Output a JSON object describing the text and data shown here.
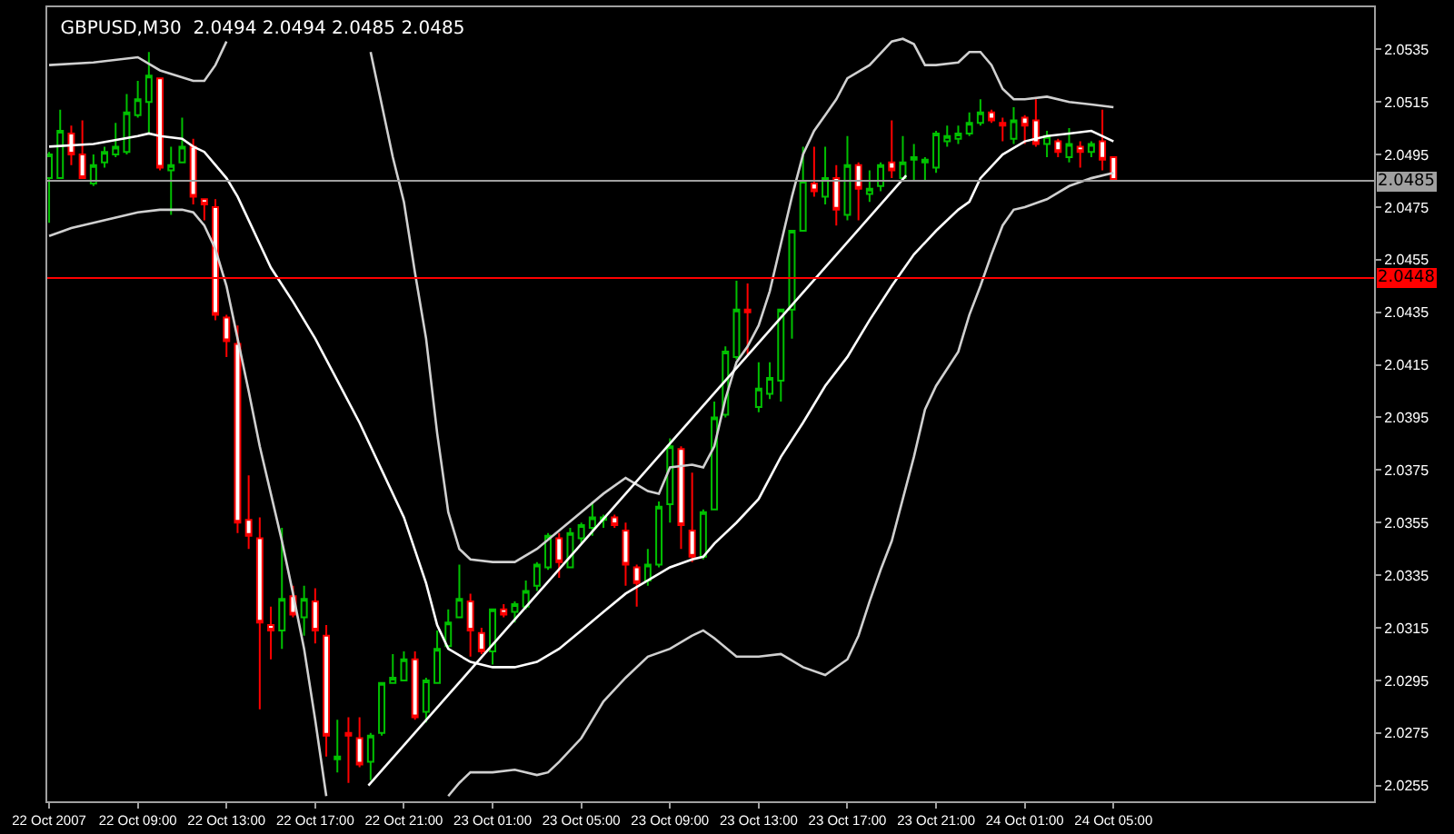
{
  "chart_data": {
    "type": "candlestick",
    "title": "GBPUSD,M30  2.0494 2.0494 2.0485 2.0485",
    "x": [
      "2007-10-22T05:00",
      "2007-10-22T05:30",
      "2007-10-22T06:00",
      "2007-10-22T06:30",
      "2007-10-22T07:00",
      "2007-10-22T07:30",
      "2007-10-22T08:00",
      "2007-10-22T08:30",
      "2007-10-22T09:00",
      "2007-10-22T09:30",
      "2007-10-22T10:00",
      "2007-10-22T10:30",
      "2007-10-22T11:00",
      "2007-10-22T11:30",
      "2007-10-22T12:00",
      "2007-10-22T12:30",
      "2007-10-22T13:00",
      "2007-10-22T13:30",
      "2007-10-22T14:00",
      "2007-10-22T14:30",
      "2007-10-22T15:00",
      "2007-10-22T15:30",
      "2007-10-22T16:00",
      "2007-10-22T16:30",
      "2007-10-22T17:00",
      "2007-10-22T17:30",
      "2007-10-22T18:00",
      "2007-10-22T18:30",
      "2007-10-22T19:00",
      "2007-10-22T19:30",
      "2007-10-22T20:00",
      "2007-10-22T20:30",
      "2007-10-22T21:00",
      "2007-10-22T21:30",
      "2007-10-22T22:00",
      "2007-10-22T22:30",
      "2007-10-22T23:00",
      "2007-10-22T23:30",
      "2007-10-23T00:00",
      "2007-10-23T00:30",
      "2007-10-23T01:00",
      "2007-10-23T01:30",
      "2007-10-23T02:00",
      "2007-10-23T02:30",
      "2007-10-23T03:00",
      "2007-10-23T03:30",
      "2007-10-23T04:00",
      "2007-10-23T04:30",
      "2007-10-23T05:00",
      "2007-10-23T05:30",
      "2007-10-23T06:00",
      "2007-10-23T06:30",
      "2007-10-23T07:00",
      "2007-10-23T07:30",
      "2007-10-23T08:00",
      "2007-10-23T08:30",
      "2007-10-23T09:00",
      "2007-10-23T09:30",
      "2007-10-23T10:00",
      "2007-10-23T10:30",
      "2007-10-23T11:00",
      "2007-10-23T11:30",
      "2007-10-23T12:00",
      "2007-10-23T12:30",
      "2007-10-23T13:00",
      "2007-10-23T13:30",
      "2007-10-23T14:00",
      "2007-10-23T14:30",
      "2007-10-23T15:00",
      "2007-10-23T15:30",
      "2007-10-23T16:00",
      "2007-10-23T16:30",
      "2007-10-23T17:00",
      "2007-10-23T17:30",
      "2007-10-23T18:00",
      "2007-10-23T18:30",
      "2007-10-23T19:00",
      "2007-10-23T19:30",
      "2007-10-23T20:00",
      "2007-10-23T20:30",
      "2007-10-23T21:00",
      "2007-10-23T21:30",
      "2007-10-23T22:00",
      "2007-10-23T22:30",
      "2007-10-23T23:00",
      "2007-10-23T23:30",
      "2007-10-24T00:00",
      "2007-10-24T00:30",
      "2007-10-24T01:00",
      "2007-10-24T01:30",
      "2007-10-24T02:00",
      "2007-10-24T02:30",
      "2007-10-24T03:00",
      "2007-10-24T03:30",
      "2007-10-24T04:00",
      "2007-10-24T04:30",
      "2007-10-24T05:00"
    ],
    "ohlc": [
      [
        2.0486,
        2.0496,
        2.0469,
        2.0495
      ],
      [
        2.0486,
        2.0512,
        2.0486,
        2.0504
      ],
      [
        2.0503,
        2.0506,
        2.0491,
        2.0495
      ],
      [
        2.0495,
        2.0508,
        2.0486,
        2.0486
      ],
      [
        2.0484,
        2.0495,
        2.0483,
        2.0491
      ],
      [
        2.0492,
        2.0498,
        2.049,
        2.0496
      ],
      [
        2.0495,
        2.0507,
        2.0494,
        2.0498
      ],
      [
        2.0496,
        2.0518,
        2.0495,
        2.0511
      ],
      [
        2.051,
        2.0523,
        2.0509,
        2.0516
      ],
      [
        2.0515,
        2.0534,
        2.0503,
        2.0525
      ],
      [
        2.0524,
        2.0524,
        2.0489,
        2.049
      ],
      [
        2.0489,
        2.0498,
        2.0472,
        2.0491
      ],
      [
        2.0492,
        2.0509,
        2.0492,
        2.0498
      ],
      [
        2.0498,
        2.0501,
        2.0476,
        2.0479
      ],
      [
        2.0478,
        2.0478,
        2.047,
        2.0476
      ],
      [
        2.0475,
        2.0478,
        2.0432,
        2.0434
      ],
      [
        2.0433,
        2.0434,
        2.0418,
        2.0424
      ],
      [
        2.0423,
        2.043,
        2.0351,
        2.0355
      ],
      [
        2.0356,
        2.0373,
        2.0345,
        2.035
      ],
      [
        2.0349,
        2.0357,
        2.0284,
        2.0317
      ],
      [
        2.0316,
        2.0323,
        2.0303,
        2.0314
      ],
      [
        2.0314,
        2.0353,
        2.0307,
        2.0326
      ],
      [
        2.0327,
        2.0331,
        2.0319,
        2.032
      ],
      [
        2.0319,
        2.0331,
        2.0312,
        2.0326
      ],
      [
        2.0325,
        2.033,
        2.0309,
        2.0314
      ],
      [
        2.0312,
        2.0316,
        2.0266,
        2.0274
      ],
      [
        2.0265,
        2.028,
        2.026,
        2.0266
      ],
      [
        2.0275,
        2.0281,
        2.0256,
        2.0274
      ],
      [
        2.0273,
        2.0281,
        2.0262,
        2.0263
      ],
      [
        2.0264,
        2.0275,
        2.0257,
        2.0274
      ],
      [
        2.0275,
        2.0294,
        2.0274,
        2.0294
      ],
      [
        2.0294,
        2.0305,
        2.0294,
        2.0296
      ],
      [
        2.0295,
        2.0306,
        2.0295,
        2.0303
      ],
      [
        2.0303,
        2.0306,
        2.028,
        2.0281
      ],
      [
        2.0283,
        2.0296,
        2.0279,
        2.0295
      ],
      [
        2.0294,
        2.0314,
        2.0294,
        2.0307
      ],
      [
        2.0308,
        2.0322,
        2.0307,
        2.0317
      ],
      [
        2.0319,
        2.0339,
        2.0319,
        2.0326
      ],
      [
        2.0325,
        2.0328,
        2.0304,
        2.0314
      ],
      [
        2.0313,
        2.0315,
        2.0305,
        2.0306
      ],
      [
        2.0306,
        2.0322,
        2.0301,
        2.0322
      ],
      [
        2.0322,
        2.0324,
        2.0319,
        2.032
      ],
      [
        2.0321,
        2.0325,
        2.0317,
        2.0324
      ],
      [
        2.0323,
        2.0333,
        2.0322,
        2.0329
      ],
      [
        2.0331,
        2.034,
        2.0329,
        2.0339
      ],
      [
        2.0338,
        2.0351,
        2.0337,
        2.035
      ],
      [
        2.0349,
        2.0351,
        2.0334,
        2.034
      ],
      [
        2.0338,
        2.0353,
        2.0338,
        2.0351
      ],
      [
        2.0349,
        2.0355,
        2.0347,
        2.0354
      ],
      [
        2.0353,
        2.0363,
        2.035,
        2.0357
      ],
      [
        2.0356,
        2.0358,
        2.0353,
        2.0357
      ],
      [
        2.0357,
        2.0358,
        2.0353,
        2.0354
      ],
      [
        2.0352,
        2.0355,
        2.0331,
        2.0339
      ],
      [
        2.0338,
        2.0339,
        2.0323,
        2.0332
      ],
      [
        2.0333,
        2.0345,
        2.0331,
        2.0339
      ],
      [
        2.0339,
        2.0363,
        2.0338,
        2.0361
      ],
      [
        2.0362,
        2.0387,
        2.0355,
        2.0384
      ],
      [
        2.0383,
        2.0384,
        2.0345,
        2.0354
      ],
      [
        2.0352,
        2.0374,
        2.034,
        2.0342
      ],
      [
        2.0342,
        2.036,
        2.0341,
        2.0359
      ],
      [
        2.036,
        2.0401,
        2.036,
        2.0395
      ],
      [
        2.0396,
        2.0422,
        2.0395,
        2.042
      ],
      [
        2.0418,
        2.0447,
        2.0417,
        2.0436
      ],
      [
        2.0436,
        2.0446,
        2.0419,
        2.0435
      ],
      [
        2.0399,
        2.0416,
        2.0397,
        2.0406
      ],
      [
        2.0404,
        2.0416,
        2.0402,
        2.041
      ],
      [
        2.0409,
        2.0436,
        2.0401,
        2.0436
      ],
      [
        2.0436,
        2.0466,
        2.0425,
        2.0466
      ],
      [
        2.0466,
        2.0498,
        2.0466,
        2.0485
      ],
      [
        2.0484,
        2.0498,
        2.0479,
        2.0481
      ],
      [
        2.0479,
        2.0498,
        2.0476,
        2.0486
      ],
      [
        2.0486,
        2.0491,
        2.0468,
        2.0474
      ],
      [
        2.0472,
        2.0502,
        2.047,
        2.0491
      ],
      [
        2.0491,
        2.0492,
        2.047,
        2.0482
      ],
      [
        2.048,
        2.0489,
        2.0477,
        2.0482
      ],
      [
        2.0483,
        2.0492,
        2.0481,
        2.0491
      ],
      [
        2.0492,
        2.0508,
        2.0486,
        2.0489
      ],
      [
        2.0486,
        2.0502,
        2.0486,
        2.0492
      ],
      [
        2.0493,
        2.0499,
        2.0485,
        2.0494
      ],
      [
        2.0492,
        2.0494,
        2.0485,
        2.0493
      ],
      [
        2.049,
        2.0504,
        2.0488,
        2.0503
      ],
      [
        2.05,
        2.0506,
        2.0498,
        2.0502
      ],
      [
        2.0501,
        2.0506,
        2.0499,
        2.0503
      ],
      [
        2.0503,
        2.0511,
        2.0502,
        2.0507
      ],
      [
        2.0507,
        2.0516,
        2.0506,
        2.0511
      ],
      [
        2.0511,
        2.0512,
        2.0507,
        2.0508
      ],
      [
        2.0507,
        2.0509,
        2.05,
        2.0506
      ],
      [
        2.0501,
        2.0513,
        2.0499,
        2.0508
      ],
      [
        2.0509,
        2.051,
        2.0499,
        2.0506
      ],
      [
        2.0508,
        2.0516,
        2.0498,
        2.0499
      ],
      [
        2.0499,
        2.0504,
        2.0494,
        2.0502
      ],
      [
        2.05,
        2.0501,
        2.0494,
        2.0496
      ],
      [
        2.0494,
        2.0505,
        2.0492,
        2.0499
      ],
      [
        2.0498,
        2.05,
        2.049,
        2.0496
      ],
      [
        2.0496,
        2.05,
        2.0494,
        2.0499
      ],
      [
        2.05,
        2.0512,
        2.0489,
        2.0493
      ],
      [
        2.0494,
        2.0494,
        2.0485,
        2.0485
      ]
    ],
    "colors": [
      "#00c000",
      "#00c000",
      "#ff0000",
      "#ff0000",
      "#00c000",
      "#00c000",
      "#00c000",
      "#00c000",
      "#00c000",
      "#00c000",
      "#ff0000",
      "#00c000",
      "#00c000",
      "#ff0000",
      "#ff0000",
      "#ff0000",
      "#ff0000",
      "#ff0000",
      "#ff0000",
      "#ff0000",
      "#ff0000",
      "#00c000",
      "#ff0000",
      "#00c000",
      "#ff0000",
      "#ff0000",
      "#00c000",
      "#ff0000",
      "#ff0000",
      "#00c000",
      "#00c000",
      "#00c000",
      "#00c000",
      "#ff0000",
      "#00c000",
      "#00c000",
      "#00c000",
      "#00c000",
      "#ff0000",
      "#ff0000",
      "#00c000",
      "#ff0000",
      "#00c000",
      "#00c000",
      "#00c000",
      "#00c000",
      "#ff0000",
      "#00c000",
      "#00c000",
      "#00c000",
      "#00c000",
      "#ff0000",
      "#ff0000",
      "#ff0000",
      "#00c000",
      "#00c000",
      "#00c000",
      "#ff0000",
      "#ff0000",
      "#00c000",
      "#00c000",
      "#00c000",
      "#00c000",
      "#ff0000",
      "#00c000",
      "#00c000",
      "#00c000",
      "#00c000",
      "#00c000",
      "#ff0000",
      "#00c000",
      "#ff0000",
      "#00c000",
      "#ff0000",
      "#00c000",
      "#00c000",
      "#ff0000",
      "#00c000",
      "#00c000",
      "#00c000",
      "#00c000",
      "#00c000",
      "#00c000",
      "#00c000",
      "#00c000",
      "#ff0000",
      "#ff0000",
      "#00c000",
      "#ff0000",
      "#ff0000",
      "#00c000",
      "#ff0000",
      "#00c000",
      "#ff0000",
      "#00c000",
      "#ff0000",
      "#ff0000"
    ],
    "series": [
      {
        "type": "line",
        "color": "#d0d0d0",
        "x": [
          "2007-10-22T05:00",
          "2007-10-22T07:00",
          "2007-10-22T09:00",
          "2007-10-22T10:00",
          "2007-10-22T11:30",
          "2007-10-22T12:00",
          "2007-10-22T12:30",
          "2007-10-22T13:00",
          "2007-10-22T16:00",
          "2007-10-22T19:30",
          "2007-10-22T20:00",
          "2007-10-22T20:30",
          "2007-10-22T21:00",
          "2007-10-22T21:30",
          "2007-10-22T22:00",
          "2007-10-22T22:30",
          "2007-10-22T23:00",
          "2007-10-22T23:30",
          "2007-10-23T00:00",
          "2007-10-23T01:00",
          "2007-10-23T02:00",
          "2007-10-23T03:00",
          "2007-10-23T04:00",
          "2007-10-23T05:00",
          "2007-10-23T06:00",
          "2007-10-23T07:00",
          "2007-10-23T08:00",
          "2007-10-23T08:30",
          "2007-10-23T09:00",
          "2007-10-23T10:00",
          "2007-10-23T10:30",
          "2007-10-23T11:00",
          "2007-10-23T11:30",
          "2007-10-23T12:00",
          "2007-10-23T12:30",
          "2007-10-23T13:00",
          "2007-10-23T13:30",
          "2007-10-23T14:00",
          "2007-10-23T14:30",
          "2007-10-23T15:00",
          "2007-10-23T15:30",
          "2007-10-23T16:00",
          "2007-10-23T16:30",
          "2007-10-23T17:00",
          "2007-10-23T18:00",
          "2007-10-23T19:00",
          "2007-10-23T19:30",
          "2007-10-23T20:00",
          "2007-10-23T20:30",
          "2007-10-23T21:00",
          "2007-10-23T22:00",
          "2007-10-23T22:30",
          "2007-10-23T23:00",
          "2007-10-23T23:30",
          "2007-10-24T00:00",
          "2007-10-24T00:30",
          "2007-10-24T01:00",
          "2007-10-24T02:00",
          "2007-10-24T03:00",
          "2007-10-24T04:00",
          "2007-10-24T05:00"
        ],
        "values": [
          2.0529,
          2.053,
          2.0532,
          2.0527,
          2.0523,
          2.0523,
          2.0529,
          2.0538,
          null,
          2.0534,
          2.0514,
          2.0494,
          2.0477,
          2.045,
          2.0425,
          2.0389,
          2.0359,
          2.0345,
          2.0341,
          2.034,
          2.034,
          2.0345,
          2.0352,
          2.0359,
          2.0366,
          2.0372,
          2.0367,
          2.0366,
          2.0376,
          2.0377,
          2.0376,
          2.0384,
          2.0402,
          2.0416,
          2.0422,
          2.043,
          2.0443,
          2.0461,
          2.0479,
          2.0495,
          2.0504,
          2.051,
          2.0516,
          2.0524,
          2.0529,
          2.0538,
          2.0539,
          2.0537,
          2.0529,
          2.0529,
          2.053,
          2.0534,
          2.0534,
          2.0529,
          2.052,
          2.0516,
          2.0516,
          2.0517,
          2.0515,
          2.0514,
          2.0513
        ]
      },
      {
        "type": "line",
        "color": "#ffffff",
        "x": [
          "2007-10-22T05:00",
          "2007-10-22T07:00",
          "2007-10-22T09:00",
          "2007-10-22T09:30",
          "2007-10-22T10:00",
          "2007-10-22T11:00",
          "2007-10-22T11:30",
          "2007-10-22T12:00",
          "2007-10-22T12:30",
          "2007-10-22T13:00",
          "2007-10-22T13:30",
          "2007-10-22T14:00",
          "2007-10-22T14:30",
          "2007-10-22T15:00",
          "2007-10-22T16:00",
          "2007-10-22T17:00",
          "2007-10-22T18:00",
          "2007-10-22T19:00",
          "2007-10-22T20:00",
          "2007-10-22T21:00",
          "2007-10-22T22:00",
          "2007-10-22T22:30",
          "2007-10-22T23:00",
          "2007-10-23T00:00",
          "2007-10-23T01:00",
          "2007-10-23T02:00",
          "2007-10-23T03:00",
          "2007-10-23T04:00",
          "2007-10-23T05:00",
          "2007-10-23T06:00",
          "2007-10-23T07:00",
          "2007-10-23T08:00",
          "2007-10-23T09:00",
          "2007-10-23T10:00",
          "2007-10-23T10:30",
          "2007-10-23T11:00",
          "2007-10-23T12:00",
          "2007-10-23T13:00",
          "2007-10-23T14:00",
          "2007-10-23T15:00",
          "2007-10-23T16:00",
          "2007-10-23T17:00",
          "2007-10-23T18:00",
          "2007-10-23T19:00",
          "2007-10-23T20:00",
          "2007-10-23T21:00",
          "2007-10-23T22:00",
          "2007-10-23T22:30",
          "2007-10-23T23:00",
          "2007-10-24T00:00",
          "2007-10-24T01:00",
          "2007-10-24T02:00",
          "2007-10-24T03:00",
          "2007-10-24T04:00",
          "2007-10-24T05:00"
        ],
        "values": [
          2.0498,
          2.0499,
          2.0502,
          2.0503,
          2.0502,
          2.0501,
          2.0498,
          2.0496,
          2.0491,
          2.0486,
          2.0479,
          2.047,
          2.0461,
          2.0452,
          2.0439,
          2.0425,
          2.0409,
          2.0393,
          2.0375,
          2.0357,
          2.0332,
          2.0316,
          2.0307,
          2.0302,
          2.03,
          2.03,
          2.0302,
          2.0307,
          2.0314,
          2.0321,
          2.0328,
          2.0333,
          2.0338,
          2.0341,
          2.0342,
          2.0347,
          2.0355,
          2.0364,
          2.038,
          2.0393,
          2.0407,
          2.0418,
          2.0432,
          2.0445,
          2.0457,
          2.0466,
          2.0474,
          2.0477,
          2.0486,
          2.0495,
          2.05,
          2.0502,
          2.0503,
          2.0504,
          2.05
        ]
      },
      {
        "type": "line",
        "color": "#d0d0d0",
        "x": [
          "2007-10-22T05:00",
          "2007-10-22T06:00",
          "2007-10-22T07:00",
          "2007-10-22T08:00",
          "2007-10-22T09:00",
          "2007-10-22T10:00",
          "2007-10-22T11:00",
          "2007-10-22T11:30",
          "2007-10-22T12:00",
          "2007-10-22T12:30",
          "2007-10-22T13:00",
          "2007-10-22T13:30",
          "2007-10-22T14:00",
          "2007-10-22T14:30",
          "2007-10-22T15:00",
          "2007-10-22T15:30",
          "2007-10-22T16:00",
          "2007-10-22T16:30",
          "2007-10-22T17:00",
          "2007-10-22T17:30",
          "2007-10-22T20:00",
          "2007-10-22T23:00",
          "2007-10-22T23:30",
          "2007-10-23T00:00",
          "2007-10-23T01:00",
          "2007-10-23T02:00",
          "2007-10-23T03:00",
          "2007-10-23T03:30",
          "2007-10-23T04:00",
          "2007-10-23T05:00",
          "2007-10-23T06:00",
          "2007-10-23T07:00",
          "2007-10-23T08:00",
          "2007-10-23T09:00",
          "2007-10-23T10:00",
          "2007-10-23T10:30",
          "2007-10-23T11:00",
          "2007-10-23T12:00",
          "2007-10-23T13:00",
          "2007-10-23T14:00",
          "2007-10-23T15:00",
          "2007-10-23T16:00",
          "2007-10-23T17:00",
          "2007-10-23T17:30",
          "2007-10-23T18:00",
          "2007-10-23T18:30",
          "2007-10-23T19:00",
          "2007-10-23T19:30",
          "2007-10-23T20:00",
          "2007-10-23T20:30",
          "2007-10-23T21:00",
          "2007-10-23T22:00",
          "2007-10-23T22:30",
          "2007-10-23T23:00",
          "2007-10-23T23:30",
          "2007-10-24T00:00",
          "2007-10-24T00:30",
          "2007-10-24T01:00",
          "2007-10-24T02:00",
          "2007-10-24T03:00",
          "2007-10-24T04:00",
          "2007-10-24T05:00"
        ],
        "values": [
          2.0464,
          2.0467,
          2.0469,
          2.0471,
          2.0473,
          2.0474,
          2.0474,
          2.0473,
          2.0468,
          2.0459,
          2.0445,
          2.0425,
          2.0405,
          2.0384,
          2.0366,
          2.0348,
          2.0328,
          2.0307,
          2.028,
          2.0251,
          null,
          2.0251,
          2.0256,
          2.026,
          2.026,
          2.0261,
          2.0259,
          2.026,
          2.0264,
          2.0273,
          2.0287,
          2.0296,
          2.0304,
          2.0307,
          2.0312,
          2.0314,
          2.0311,
          2.0304,
          2.0304,
          2.0305,
          2.03,
          2.0297,
          2.0303,
          2.0312,
          2.0325,
          2.0337,
          2.0348,
          2.0364,
          2.038,
          2.0398,
          2.0407,
          2.042,
          2.0434,
          2.0445,
          2.0457,
          2.0468,
          2.0474,
          2.0475,
          2.0478,
          2.0483,
          2.0486,
          2.0488
        ]
      },
      {
        "type": "line",
        "color": "#ffffff",
        "x": [
          "2007-10-22T19:24",
          "2007-10-23T19:39"
        ],
        "values": [
          2.0255,
          2.0487
        ]
      }
    ],
    "ref_lines": [
      {
        "axis": "y",
        "value": 2.0448,
        "label": "2.0448",
        "color": "#ff0000"
      },
      {
        "axis": "y",
        "value": 2.0485,
        "label": "2.0485",
        "color": "#a0a0a0"
      }
    ],
    "xlim": [
      "2007-10-22T04:55",
      "2007-10-24T16:45"
    ],
    "xticks": [
      {
        "value": "2007-10-22T05:00",
        "label": "22 Oct 2007"
      },
      {
        "value": "2007-10-22T09:00",
        "label": "22 Oct 09:00"
      },
      {
        "value": "2007-10-22T13:00",
        "label": "22 Oct 13:00"
      },
      {
        "value": "2007-10-22T17:00",
        "label": "22 Oct 17:00"
      },
      {
        "value": "2007-10-22T21:00",
        "label": "22 Oct 21:00"
      },
      {
        "value": "2007-10-23T01:00",
        "label": "23 Oct 01:00"
      },
      {
        "value": "2007-10-23T05:00",
        "label": "23 Oct 05:00"
      },
      {
        "value": "2007-10-23T09:00",
        "label": "23 Oct 09:00"
      },
      {
        "value": "2007-10-23T13:00",
        "label": "23 Oct 13:00"
      },
      {
        "value": "2007-10-23T17:00",
        "label": "23 Oct 17:00"
      },
      {
        "value": "2007-10-23T21:00",
        "label": "23 Oct 21:00"
      },
      {
        "value": "2007-10-24T01:00",
        "label": "24 Oct 01:00"
      },
      {
        "value": "2007-10-24T05:00",
        "label": "24 Oct 05:00"
      }
    ],
    "ylim": [
      2.0249,
      2.0551
    ],
    "yticks": [
      2.0535,
      2.0515,
      2.0495,
      2.0475,
      2.0455,
      2.0435,
      2.0415,
      2.0395,
      2.0375,
      2.0355,
      2.0335,
      2.0315,
      2.0295,
      2.0275,
      2.0255
    ],
    "grid": false
  }
}
